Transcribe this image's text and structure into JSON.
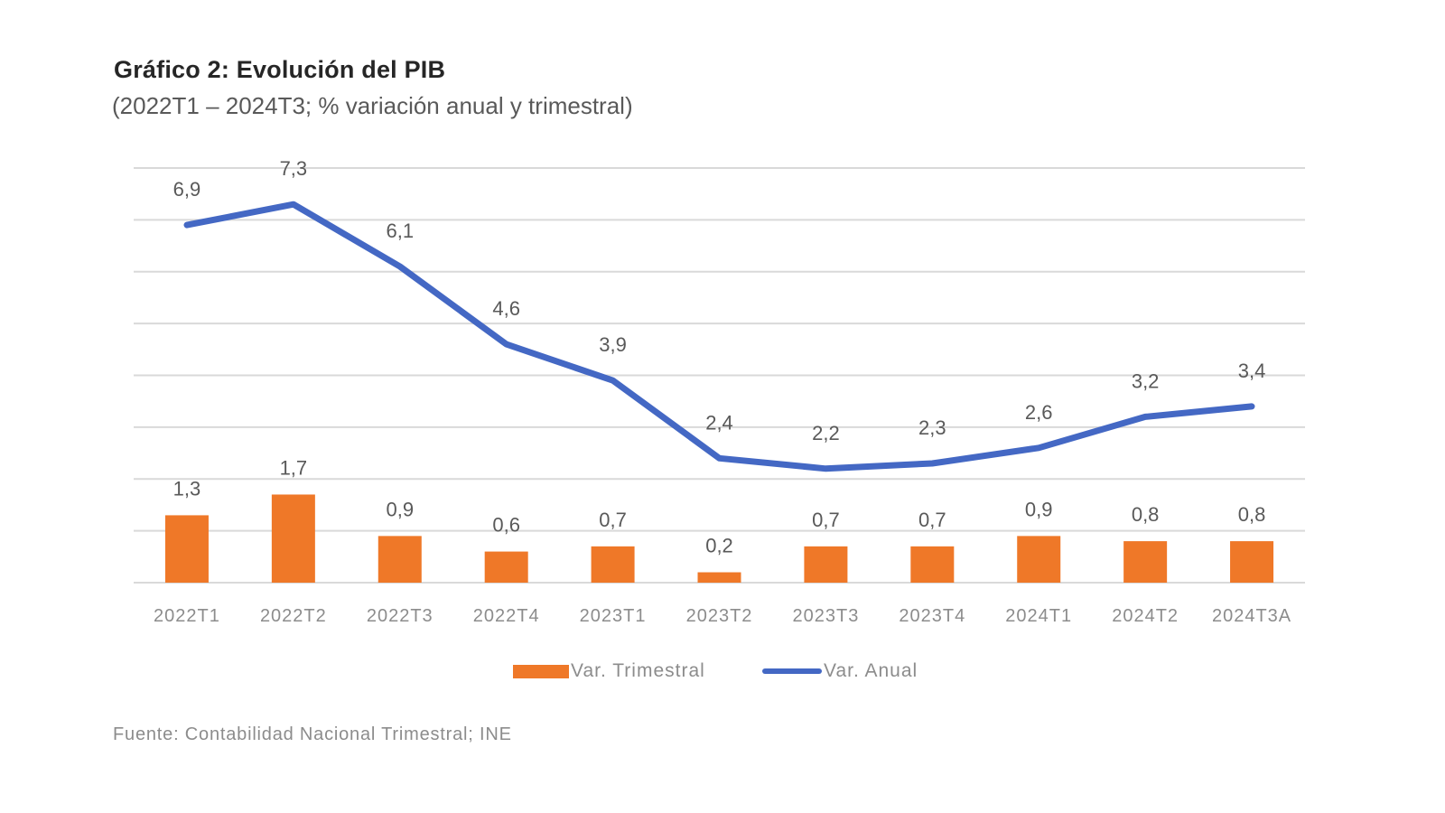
{
  "chart_data": {
    "type": "bar+line",
    "title": "Gráfico 2: Evolución del PIB",
    "subtitle": "(2022T1 – 2024T3; % variación anual y trimestral)",
    "categories": [
      "2022T1",
      "2022T2",
      "2022T3",
      "2022T4",
      "2023T1",
      "2023T2",
      "2023T3",
      "2023T4",
      "2024T1",
      "2024T2",
      "2024T3A"
    ],
    "series": [
      {
        "name": "Var. Trimestral",
        "type": "bar",
        "color": "#ef7828",
        "values": [
          1.3,
          1.7,
          0.9,
          0.6,
          0.7,
          0.2,
          0.7,
          0.7,
          0.9,
          0.8,
          0.8
        ],
        "labels": [
          "1,3",
          "1,7",
          "0,9",
          "0,6",
          "0,7",
          "0,2",
          "0,7",
          "0,7",
          "0,9",
          "0,8",
          "0,8"
        ]
      },
      {
        "name": "Var. Anual",
        "type": "line",
        "color": "#4468c4",
        "values": [
          6.9,
          7.3,
          6.1,
          4.6,
          3.9,
          2.4,
          2.2,
          2.3,
          2.6,
          3.2,
          3.4
        ],
        "labels": [
          "6,9",
          "7,3",
          "6,1",
          "4,6",
          "3,9",
          "2,4",
          "2,2",
          "2,3",
          "2,6",
          "3,2",
          "3,4"
        ]
      }
    ],
    "xlabel": "",
    "ylabel": "",
    "ylim": [
      0,
      8
    ],
    "ytick_step": 1,
    "y_tick_labels_shown": false,
    "grid": true,
    "legend": "bottom-center",
    "source": "Fuente: Contabilidad Nacional Trimestral; INE"
  }
}
